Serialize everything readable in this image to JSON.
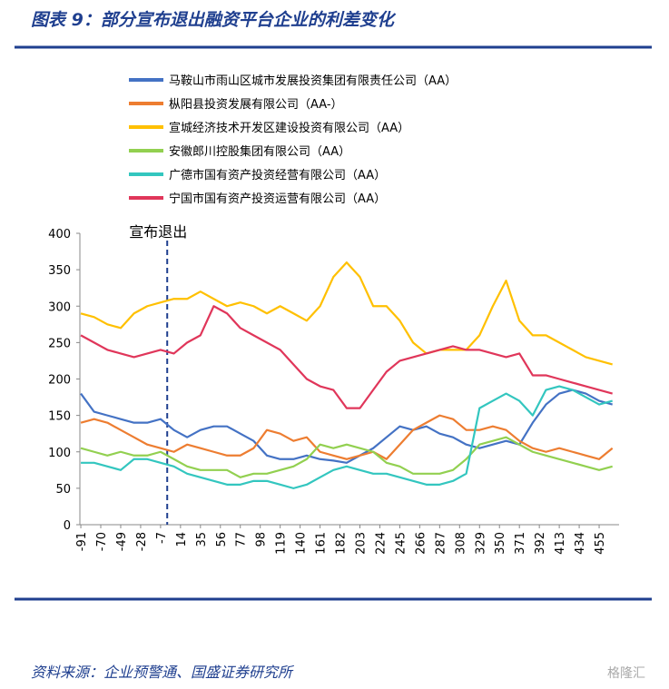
{
  "title": "图表 9：部分宣布退出融资平台企业的利差变化",
  "source": "资料来源：企业预警通、国盛证券研究所",
  "watermark": "格隆汇",
  "chart_data": {
    "type": "line",
    "annotation": "宣布退出",
    "annotation_x": 0,
    "x": [
      -91,
      -77,
      -63,
      -49,
      -35,
      -21,
      -7,
      7,
      21,
      35,
      49,
      63,
      77,
      91,
      105,
      119,
      133,
      147,
      161,
      175,
      189,
      203,
      217,
      231,
      245,
      259,
      273,
      287,
      301,
      315,
      329,
      343,
      357,
      371,
      385,
      399,
      413,
      427,
      441,
      455,
      469
    ],
    "xlim": [
      -92,
      476
    ],
    "xticks": [
      -91,
      -70,
      -49,
      -28,
      -7,
      14,
      35,
      56,
      77,
      98,
      119,
      140,
      161,
      182,
      203,
      224,
      245,
      266,
      287,
      308,
      329,
      350,
      371,
      392,
      413,
      434,
      455
    ],
    "ylim": [
      0,
      400
    ],
    "yticks": [
      0,
      50,
      100,
      150,
      200,
      250,
      300,
      350,
      400
    ],
    "series": [
      {
        "name": "马鞍山市雨山区城市发展投资集团有限责任公司（AA）",
        "color": "#4472c4",
        "values": [
          180,
          155,
          150,
          145,
          140,
          140,
          145,
          130,
          120,
          130,
          135,
          135,
          125,
          115,
          95,
          90,
          90,
          95,
          90,
          88,
          85,
          95,
          105,
          120,
          135,
          130,
          135,
          125,
          120,
          110,
          105,
          110,
          115,
          110,
          140,
          165,
          180,
          185,
          180,
          170,
          165
        ]
      },
      {
        "name": "枞阳县投资发展有限公司（AA-）",
        "color": "#ed7d31",
        "values": [
          140,
          145,
          140,
          130,
          120,
          110,
          105,
          100,
          110,
          105,
          100,
          95,
          95,
          105,
          130,
          125,
          115,
          120,
          100,
          95,
          90,
          95,
          100,
          90,
          110,
          130,
          140,
          150,
          145,
          130,
          130,
          135,
          130,
          115,
          105,
          100,
          105,
          100,
          95,
          90,
          105
        ]
      },
      {
        "name": "宣城经济技术开发区建设投资有限公司（AA）",
        "color": "#ffc000",
        "values": [
          290,
          285,
          275,
          270,
          290,
          300,
          305,
          310,
          310,
          320,
          310,
          300,
          305,
          300,
          290,
          300,
          290,
          280,
          300,
          340,
          360,
          340,
          300,
          300,
          280,
          250,
          235,
          240,
          240,
          240,
          260,
          300,
          335,
          280,
          260,
          260,
          250,
          240,
          230,
          225,
          220
        ]
      },
      {
        "name": "安徽郎川控股集团有限公司（AA）",
        "color": "#92d050",
        "values": [
          105,
          100,
          95,
          100,
          95,
          95,
          100,
          90,
          80,
          75,
          75,
          75,
          65,
          70,
          70,
          75,
          80,
          90,
          110,
          105,
          110,
          105,
          100,
          85,
          80,
          70,
          70,
          70,
          75,
          90,
          110,
          115,
          120,
          110,
          100,
          95,
          90,
          85,
          80,
          75,
          80
        ]
      },
      {
        "name": "广德市国有资产投资经营有限公司（AA）",
        "color": "#33c6bf",
        "values": [
          85,
          85,
          80,
          75,
          90,
          90,
          85,
          80,
          70,
          65,
          60,
          55,
          55,
          60,
          60,
          55,
          50,
          55,
          65,
          75,
          80,
          75,
          70,
          70,
          65,
          60,
          55,
          55,
          60,
          70,
          160,
          170,
          180,
          170,
          150,
          185,
          190,
          185,
          175,
          165,
          170
        ]
      },
      {
        "name": "宁国市国有资产投资运营有限公司（AA）",
        "color": "#e0365a",
        "values": [
          260,
          250,
          240,
          235,
          230,
          235,
          240,
          235,
          250,
          260,
          300,
          290,
          270,
          260,
          250,
          240,
          220,
          200,
          190,
          185,
          160,
          160,
          185,
          210,
          225,
          230,
          235,
          240,
          245,
          240,
          240,
          235,
          230,
          235,
          205,
          205,
          200,
          195,
          190,
          185,
          180
        ]
      }
    ]
  }
}
